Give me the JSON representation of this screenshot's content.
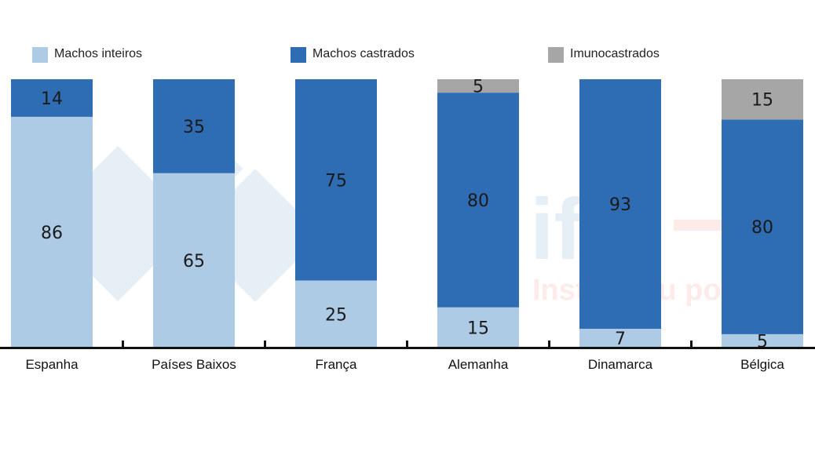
{
  "chart_data": {
    "type": "bar",
    "stacked": true,
    "categories": [
      "Espanha",
      "Países Baixos",
      "França",
      "Alemanha",
      "Dinamarca",
      "Bélgica"
    ],
    "series": [
      {
        "name": "Machos inteiros",
        "color": "#aecbe6",
        "values": [
          86,
          65,
          25,
          15,
          7,
          5
        ]
      },
      {
        "name": "Machos castrados",
        "color": "#2e6db4",
        "values": [
          14,
          35,
          75,
          80,
          93,
          80
        ]
      },
      {
        "name": "Imunocastrados",
        "color": "#a6a6a6",
        "values": [
          0,
          0,
          0,
          5,
          0,
          15
        ]
      }
    ],
    "ylim": [
      0,
      100
    ],
    "grid": false,
    "legend_position": "top",
    "data_labels": true
  },
  "watermark": {
    "brand": "ifip",
    "tagline": "Institut du porc",
    "logo": "333"
  }
}
